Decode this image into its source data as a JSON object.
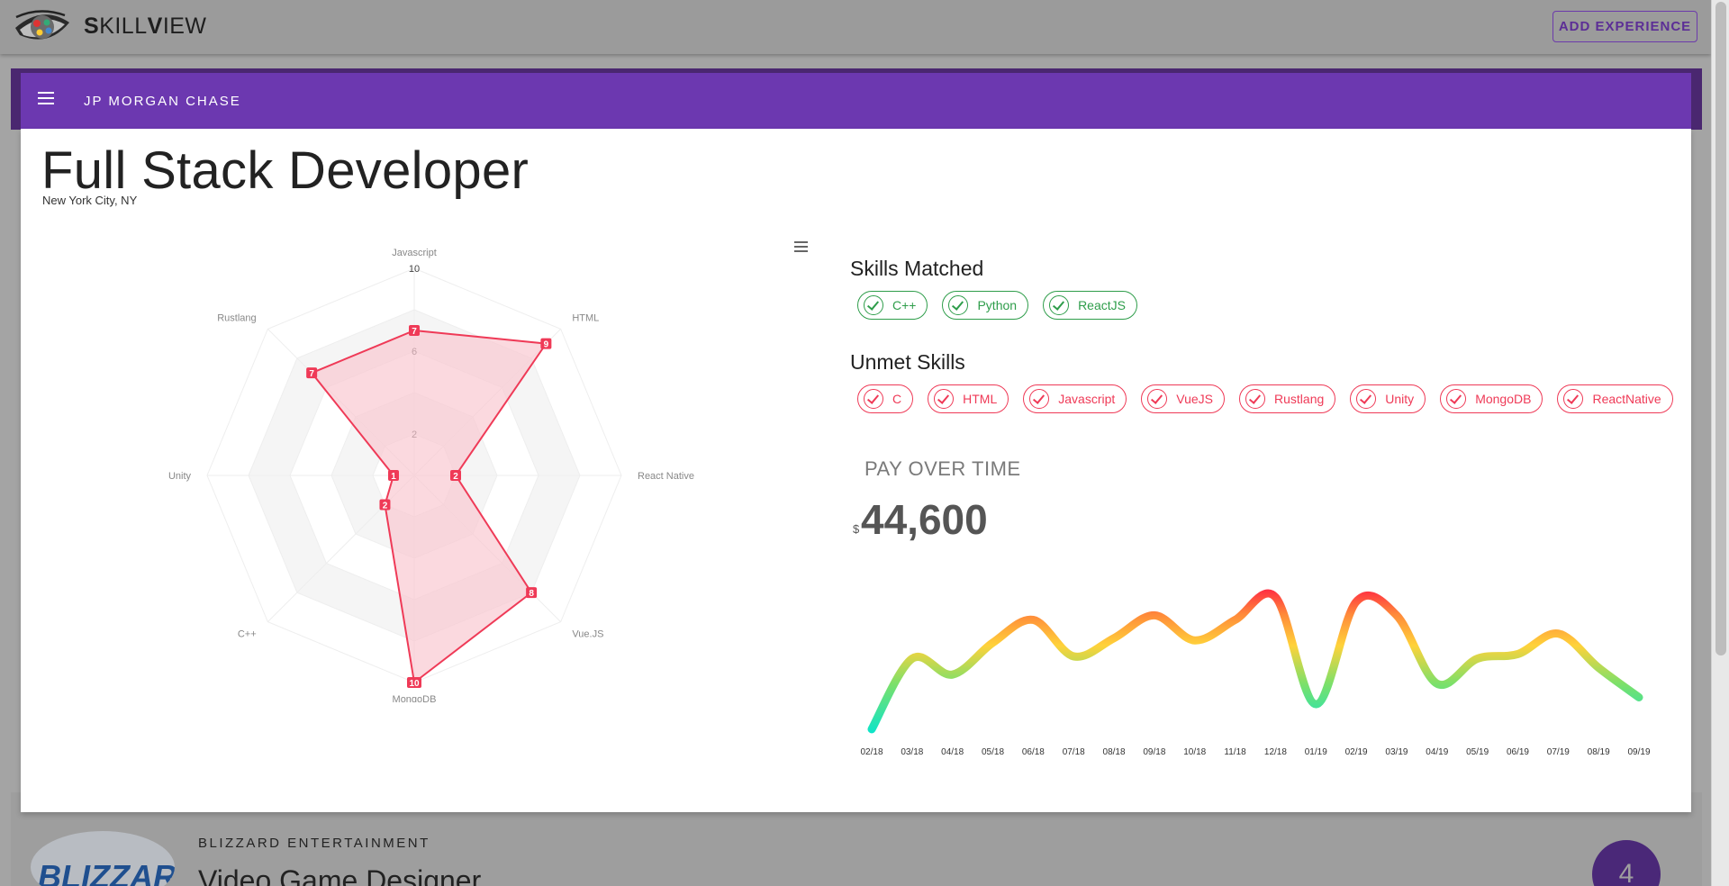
{
  "app": {
    "brand_first": "S",
    "brand_rest1": "KILL",
    "brand_mid": "V",
    "brand_rest2": "IEW",
    "add_button": "ADD EXPERIENCE",
    "logo_icon": "eye-logo-icon"
  },
  "job": {
    "company": "JP MORGAN CHASE",
    "title": "Full Stack Developer",
    "location": "New York City, NY"
  },
  "skills_matched_title": "Skills Matched",
  "skills_matched": [
    "C++",
    "Python",
    "ReactJS"
  ],
  "unmet_title": "Unmet Skills",
  "unmet_skills": [
    "C",
    "HTML",
    "Javascript",
    "VueJS",
    "Rustlang",
    "Unity",
    "MongoDB",
    "ReactNative"
  ],
  "pay": {
    "label": "PAY OVER TIME",
    "currency": "$",
    "value": "44,600"
  },
  "next_card": {
    "company": "BLIZZARD ENTERTAINMENT",
    "title": "Video Game Designer",
    "badge": "4",
    "logo_text": "BLIZZARD"
  },
  "chart_data": [
    {
      "type": "radar",
      "axes": [
        "Javascript",
        "HTML",
        "React Native",
        "Vue.JS",
        "MongoDB",
        "C++",
        "Unity",
        "Rustlang"
      ],
      "tick_labels": [
        "2",
        "6",
        "10"
      ],
      "max": 10,
      "values": [
        7,
        9,
        2,
        8,
        10,
        2,
        1,
        7
      ],
      "colors": {
        "line": "#ef3a57",
        "fill": "#f9c9d1",
        "grid": "#f4f4f4"
      }
    },
    {
      "type": "line",
      "categories": [
        "02/18",
        "03/18",
        "04/18",
        "05/18",
        "06/18",
        "07/18",
        "08/18",
        "09/18",
        "10/18",
        "11/18",
        "12/18",
        "01/19",
        "02/19",
        "03/19",
        "04/19",
        "05/19",
        "06/19",
        "07/19",
        "08/19",
        "09/19"
      ],
      "values": [
        39200,
        42300,
        41600,
        43000,
        44000,
        42400,
        43200,
        44200,
        43100,
        44000,
        45000,
        40300,
        44800,
        44200,
        41200,
        42300,
        42500,
        43400,
        41900,
        40600
      ],
      "ylim": [
        38800,
        45600
      ],
      "colors": {
        "low": "#00e5d4",
        "mid": "#7be06a",
        "high1": "#ffd23a",
        "high2": "#ff8a3a",
        "peak": "#ff1744"
      }
    }
  ]
}
